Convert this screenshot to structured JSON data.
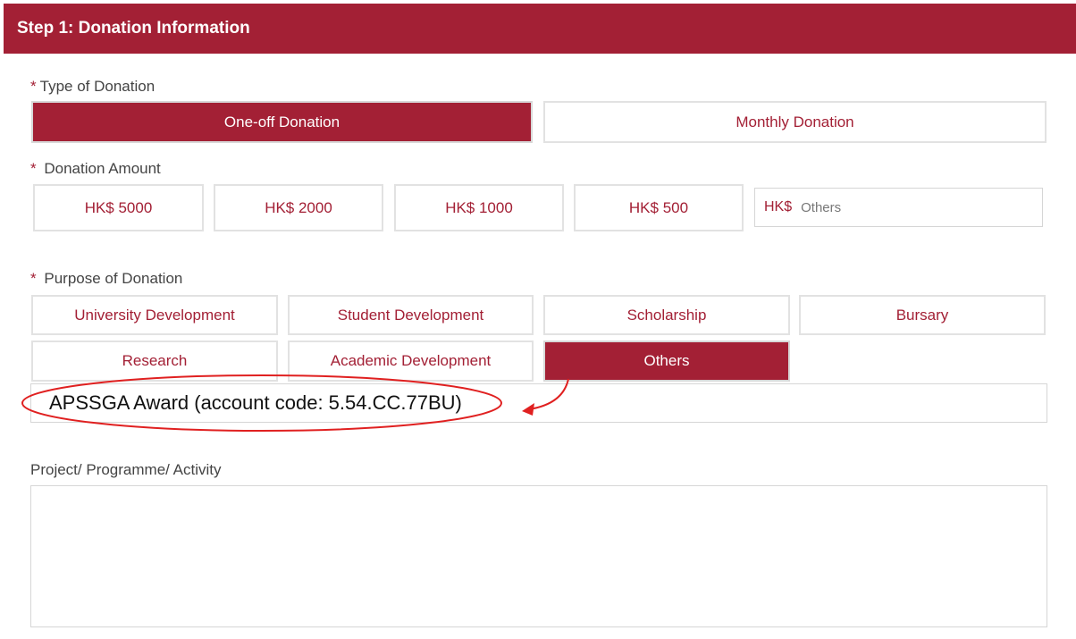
{
  "header": {
    "title": "Step 1: Donation Information"
  },
  "type": {
    "label": "Type of Donation",
    "required": "*",
    "options": [
      {
        "label": "One-off Donation",
        "selected": true
      },
      {
        "label": "Monthly Donation",
        "selected": false
      }
    ]
  },
  "amount": {
    "label": "Donation Amount",
    "required": "*",
    "options": [
      "HK$ 5000",
      "HK$ 2000",
      "HK$ 1000",
      "HK$ 500"
    ],
    "other_prefix": "HK$",
    "other_placeholder": "Others"
  },
  "purpose": {
    "label": "Purpose of Donation",
    "required": "*",
    "options": [
      {
        "label": "University Development",
        "selected": false
      },
      {
        "label": "Student Development",
        "selected": false
      },
      {
        "label": "Scholarship",
        "selected": false
      },
      {
        "label": "Bursary",
        "selected": false
      },
      {
        "label": "Research",
        "selected": false
      },
      {
        "label": "Academic Development",
        "selected": false
      },
      {
        "label": "Others",
        "selected": true
      }
    ],
    "other_value": "APSSGA Award (account code: 5.54.CC.77BU)"
  },
  "project": {
    "label": "Project/ Programme/ Activity",
    "value": ""
  },
  "colors": {
    "brand": "#a32035",
    "annotation": "#e02020"
  }
}
